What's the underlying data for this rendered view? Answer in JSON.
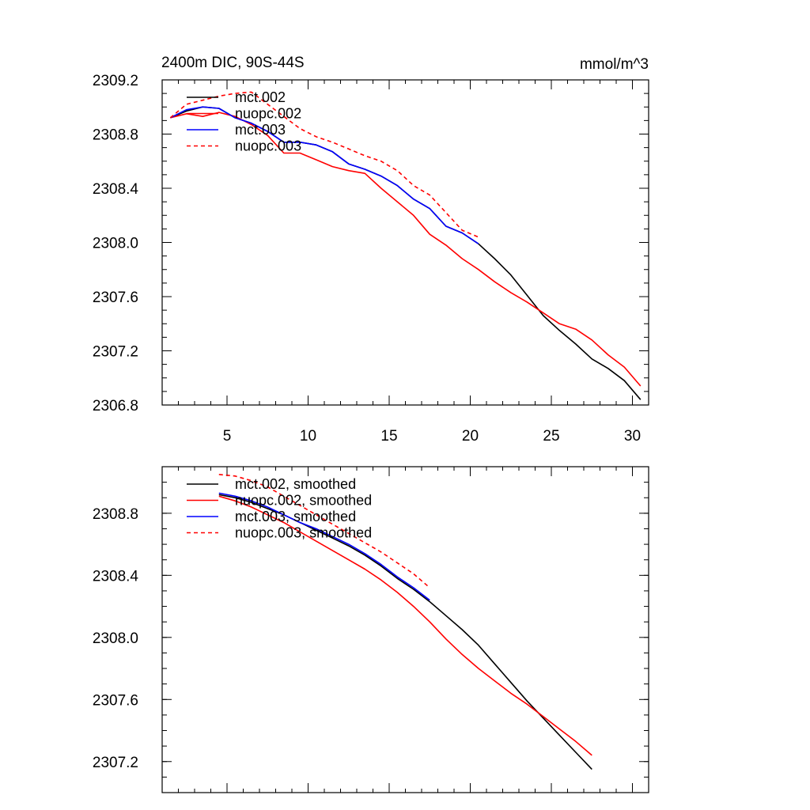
{
  "chart_data": [
    {
      "type": "line",
      "title": "2400m DIC, 90S-44S",
      "units": "mmol/m^3",
      "xlim": [
        1,
        31
      ],
      "ylim": [
        2306.8,
        2309.2
      ],
      "xticks": [
        5,
        10,
        15,
        20,
        25,
        30
      ],
      "yticks": [
        2306.8,
        2307.2,
        2307.6,
        2308.0,
        2308.4,
        2308.8,
        2309.2
      ],
      "ytick_labels": [
        "2306.8",
        "2307.2",
        "2307.6",
        "2308.0",
        "2308.4",
        "2308.8",
        "2309.2"
      ],
      "xtick_labels": [
        "5",
        "10",
        "15",
        "20",
        "25",
        "30"
      ],
      "legend_position": "top-left",
      "series": [
        {
          "name": "mct.002",
          "color": "#000000",
          "dash": "solid",
          "x": [
            1.5,
            2.5,
            3.5,
            4.5,
            5.5,
            6.5,
            7.5,
            8.5,
            9.5,
            10.5,
            11.5,
            12.5,
            13.5,
            14.5,
            15.5,
            16.5,
            17.5,
            18.5,
            19.5,
            20.5,
            21.5,
            22.5,
            23.5,
            24.5,
            25.5,
            26.5,
            27.5,
            28.5,
            29.5,
            30.5
          ],
          "y": [
            2308.92,
            2308.97,
            2309.0,
            2308.99,
            2308.92,
            2308.88,
            2308.82,
            2308.74,
            2308.74,
            2308.72,
            2308.67,
            2308.58,
            2308.54,
            2308.49,
            2308.42,
            2308.32,
            2308.25,
            2308.12,
            2308.07,
            2307.99,
            2307.88,
            2307.76,
            2307.61,
            2307.46,
            2307.35,
            2307.25,
            2307.14,
            2307.07,
            2306.98,
            2306.84
          ]
        },
        {
          "name": "nuopc.002",
          "color": "#ff0000",
          "dash": "solid",
          "x": [
            1.5,
            2.5,
            3.5,
            4.5,
            5.5,
            6.5,
            7.5,
            8.5,
            9.5,
            10.5,
            11.5,
            12.5,
            13.5,
            14.5,
            15.5,
            16.5,
            17.5,
            18.5,
            19.5,
            20.5,
            21.5,
            22.5,
            23.5,
            24.5,
            25.5,
            26.5,
            27.5,
            28.5,
            29.5,
            30.5
          ],
          "y": [
            2308.92,
            2308.95,
            2308.93,
            2308.96,
            2308.93,
            2308.87,
            2308.79,
            2308.66,
            2308.66,
            2308.61,
            2308.56,
            2308.53,
            2308.51,
            2308.4,
            2308.3,
            2308.2,
            2308.06,
            2307.98,
            2307.88,
            2307.8,
            2307.71,
            2307.63,
            2307.56,
            2307.48,
            2307.4,
            2307.36,
            2307.28,
            2307.17,
            2307.08,
            2306.94
          ]
        },
        {
          "name": "mct.003",
          "color": "#0000ff",
          "dash": "solid",
          "x": [
            1.5,
            2.5,
            3.5,
            4.5,
            5.5,
            6.5,
            7.5,
            8.5,
            9.5,
            10.5,
            11.5,
            12.5,
            13.5,
            14.5,
            15.5,
            16.5,
            17.5,
            18.5,
            19.5,
            20.5
          ],
          "y": [
            2308.92,
            2308.98,
            2309.0,
            2308.99,
            2308.92,
            2308.88,
            2308.82,
            2308.74,
            2308.74,
            2308.72,
            2308.67,
            2308.58,
            2308.54,
            2308.49,
            2308.42,
            2308.32,
            2308.25,
            2308.12,
            2308.07,
            2307.99
          ]
        },
        {
          "name": "nuopc.003",
          "color": "#ff0000",
          "dash": "dashed",
          "x": [
            1.5,
            2.5,
            3.5,
            4.5,
            5.5,
            6.5,
            7.5,
            8.5,
            9.5,
            10.5,
            11.5,
            12.5,
            13.5,
            14.5,
            15.5,
            16.5,
            17.5,
            18.5,
            19.5,
            20.5
          ],
          "y": [
            2308.92,
            2309.02,
            2309.05,
            2309.08,
            2309.1,
            2309.11,
            2309.02,
            2308.93,
            2308.84,
            2308.78,
            2308.74,
            2308.69,
            2308.64,
            2308.6,
            2308.53,
            2308.42,
            2308.35,
            2308.22,
            2308.09,
            2308.04
          ]
        }
      ]
    },
    {
      "type": "line",
      "xlim": [
        1,
        31
      ],
      "ylim": [
        2307.0,
        2309.1
      ],
      "xticks": [
        5,
        10,
        15,
        20,
        25,
        30
      ],
      "yticks": [
        2307.2,
        2307.6,
        2308.0,
        2308.4,
        2308.8
      ],
      "ytick_labels": [
        "2307.2",
        "2307.6",
        "2308.0",
        "2308.4",
        "2308.8"
      ],
      "legend_position": "top-left",
      "series": [
        {
          "name": "mct.002, smoothed",
          "color": "#000000",
          "dash": "solid",
          "x": [
            4.5,
            5.5,
            6.5,
            7.5,
            8.5,
            9.5,
            10.5,
            11.5,
            12.5,
            13.5,
            14.5,
            15.5,
            16.5,
            17.5,
            18.5,
            19.5,
            20.5,
            21.5,
            22.5,
            23.5,
            24.5,
            25.5,
            26.5,
            27.5
          ],
          "y": [
            2308.92,
            2308.9,
            2308.87,
            2308.83,
            2308.79,
            2308.74,
            2308.69,
            2308.64,
            2308.59,
            2308.53,
            2308.46,
            2308.38,
            2308.31,
            2308.23,
            2308.14,
            2308.05,
            2307.95,
            2307.83,
            2307.71,
            2307.59,
            2307.48,
            2307.37,
            2307.26,
            2307.15
          ]
        },
        {
          "name": "nuopc.002, smoothed",
          "color": "#ff0000",
          "dash": "solid",
          "x": [
            4.5,
            5.5,
            6.5,
            7.5,
            8.5,
            9.5,
            10.5,
            11.5,
            12.5,
            13.5,
            14.5,
            15.5,
            16.5,
            17.5,
            18.5,
            19.5,
            20.5,
            21.5,
            22.5,
            23.5,
            24.5,
            25.5,
            26.5,
            27.5
          ],
          "y": [
            2308.91,
            2308.88,
            2308.84,
            2308.79,
            2308.74,
            2308.68,
            2308.62,
            2308.56,
            2308.5,
            2308.44,
            2308.37,
            2308.29,
            2308.2,
            2308.1,
            2307.99,
            2307.89,
            2307.8,
            2307.72,
            2307.64,
            2307.57,
            2307.49,
            2307.41,
            2307.33,
            2307.24
          ]
        },
        {
          "name": "mct.003, smoothed",
          "color": "#0000ff",
          "dash": "solid",
          "x": [
            4.5,
            5.5,
            6.5,
            7.5,
            8.5,
            9.5,
            10.5,
            11.5,
            12.5,
            13.5,
            14.5,
            15.5,
            16.5,
            17.5
          ],
          "y": [
            2308.93,
            2308.91,
            2308.88,
            2308.84,
            2308.79,
            2308.74,
            2308.7,
            2308.65,
            2308.6,
            2308.54,
            2308.47,
            2308.39,
            2308.32,
            2308.24
          ]
        },
        {
          "name": "nuopc.003, smoothed",
          "color": "#ff0000",
          "dash": "dashed",
          "x": [
            4.5,
            5.5,
            6.5,
            7.5,
            8.5,
            9.5,
            10.5,
            11.5,
            12.5,
            13.5,
            14.5,
            15.5,
            16.5,
            17.5
          ],
          "y": [
            2309.05,
            2309.04,
            2309.01,
            2308.97,
            2308.91,
            2308.85,
            2308.79,
            2308.73,
            2308.67,
            2308.61,
            2308.55,
            2308.48,
            2308.41,
            2308.32
          ]
        }
      ]
    }
  ]
}
